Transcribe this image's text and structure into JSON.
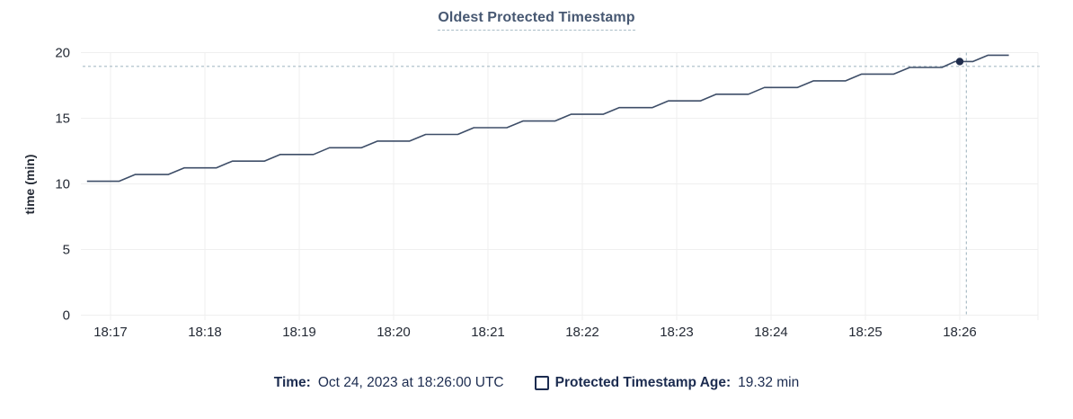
{
  "title": "Oldest Protected Timestamp",
  "colors": {
    "title_text": "#475872",
    "axis_text": "#242a35",
    "legend_text": "#1c2c50",
    "line": "#3e4e68",
    "point_marker": "#1f2d4d",
    "gridline": "#efefef",
    "crosshair": "#a9bcc6",
    "background": "#ffffff"
  },
  "chart_data": {
    "type": "line",
    "title": "Oldest Protected Timestamp",
    "xlabel": "",
    "ylabel": "time (min)",
    "x_tick_labels": [
      "18:17",
      "18:18",
      "18:19",
      "18:20",
      "18:21",
      "18:22",
      "18:23",
      "18:24",
      "18:25",
      "18:26"
    ],
    "y_ticks": [
      0,
      5,
      10,
      15,
      20
    ],
    "ylim": [
      0,
      20
    ],
    "grid": "on",
    "legend_position": "bottom-center",
    "x_unit": "minutes offset from 18:17",
    "series": [
      {
        "name": "Protected Timestamp Age",
        "shape": "staircase",
        "points": [
          [
            -0.25,
            10.2
          ],
          [
            0.09,
            10.2
          ],
          [
            0.26,
            10.71
          ],
          [
            0.61,
            10.71
          ],
          [
            0.78,
            11.22
          ],
          [
            1.12,
            11.22
          ],
          [
            1.29,
            11.73
          ],
          [
            1.63,
            11.73
          ],
          [
            1.8,
            12.24
          ],
          [
            2.15,
            12.24
          ],
          [
            2.32,
            12.75
          ],
          [
            2.66,
            12.75
          ],
          [
            2.83,
            13.26
          ],
          [
            3.17,
            13.26
          ],
          [
            3.34,
            13.77
          ],
          [
            3.68,
            13.77
          ],
          [
            3.85,
            14.28
          ],
          [
            4.2,
            14.28
          ],
          [
            4.37,
            14.79
          ],
          [
            4.71,
            14.79
          ],
          [
            4.88,
            15.3
          ],
          [
            5.22,
            15.3
          ],
          [
            5.39,
            15.81
          ],
          [
            5.74,
            15.81
          ],
          [
            5.91,
            16.32
          ],
          [
            6.25,
            16.32
          ],
          [
            6.42,
            16.83
          ],
          [
            6.76,
            16.83
          ],
          [
            6.93,
            17.34
          ],
          [
            7.28,
            17.34
          ],
          [
            7.45,
            17.85
          ],
          [
            7.79,
            17.85
          ],
          [
            7.96,
            18.36
          ],
          [
            8.3,
            18.36
          ],
          [
            8.47,
            18.87
          ],
          [
            8.81,
            18.87
          ],
          [
            8.95,
            19.32
          ],
          [
            9.14,
            19.32
          ],
          [
            9.3,
            19.8
          ],
          [
            9.52,
            19.8
          ]
        ]
      }
    ],
    "hover_crosshair": {
      "x_min_offset": 9.07,
      "y_value": 18.95,
      "style": "dashed"
    },
    "highlighted_point": {
      "x_min_offset": 9.0,
      "x_label": "18:26",
      "value": 19.32
    }
  },
  "legend": {
    "time_label": "Time:",
    "time_value": "Oct 24, 2023 at 18:26:00 UTC",
    "series_checkbox_state": "unchecked",
    "series_label": "Protected Timestamp Age:",
    "series_value": "19.32 min"
  }
}
